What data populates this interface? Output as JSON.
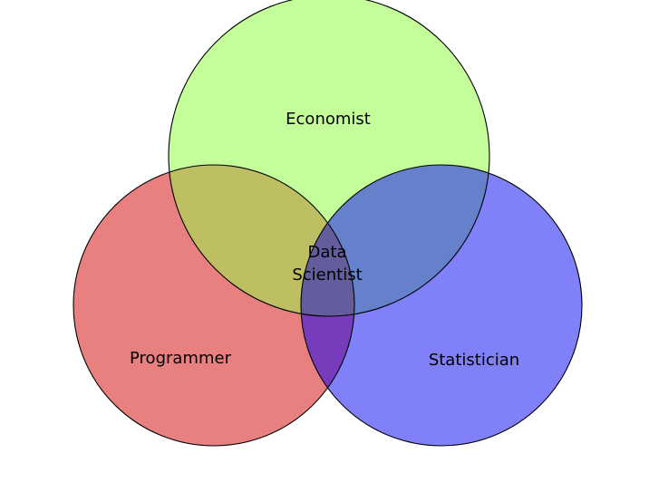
{
  "diagram": {
    "type": "venn",
    "sets": [
      {
        "id": "programmer",
        "label": "Programmer",
        "color": "#e98080"
      },
      {
        "id": "statistician",
        "label": "Statistician",
        "color": "#8080f8"
      },
      {
        "id": "economist",
        "label": "Economist",
        "color": "#c3fe9b"
      }
    ],
    "overlaps": {
      "programmer_economist": "#bebf62",
      "economist_statistician": "#6581cc",
      "programmer_statistician": "#773cbb",
      "all_three": "#635d9d"
    },
    "center_label_line1": "Data",
    "center_label_line2": "Scientist"
  }
}
